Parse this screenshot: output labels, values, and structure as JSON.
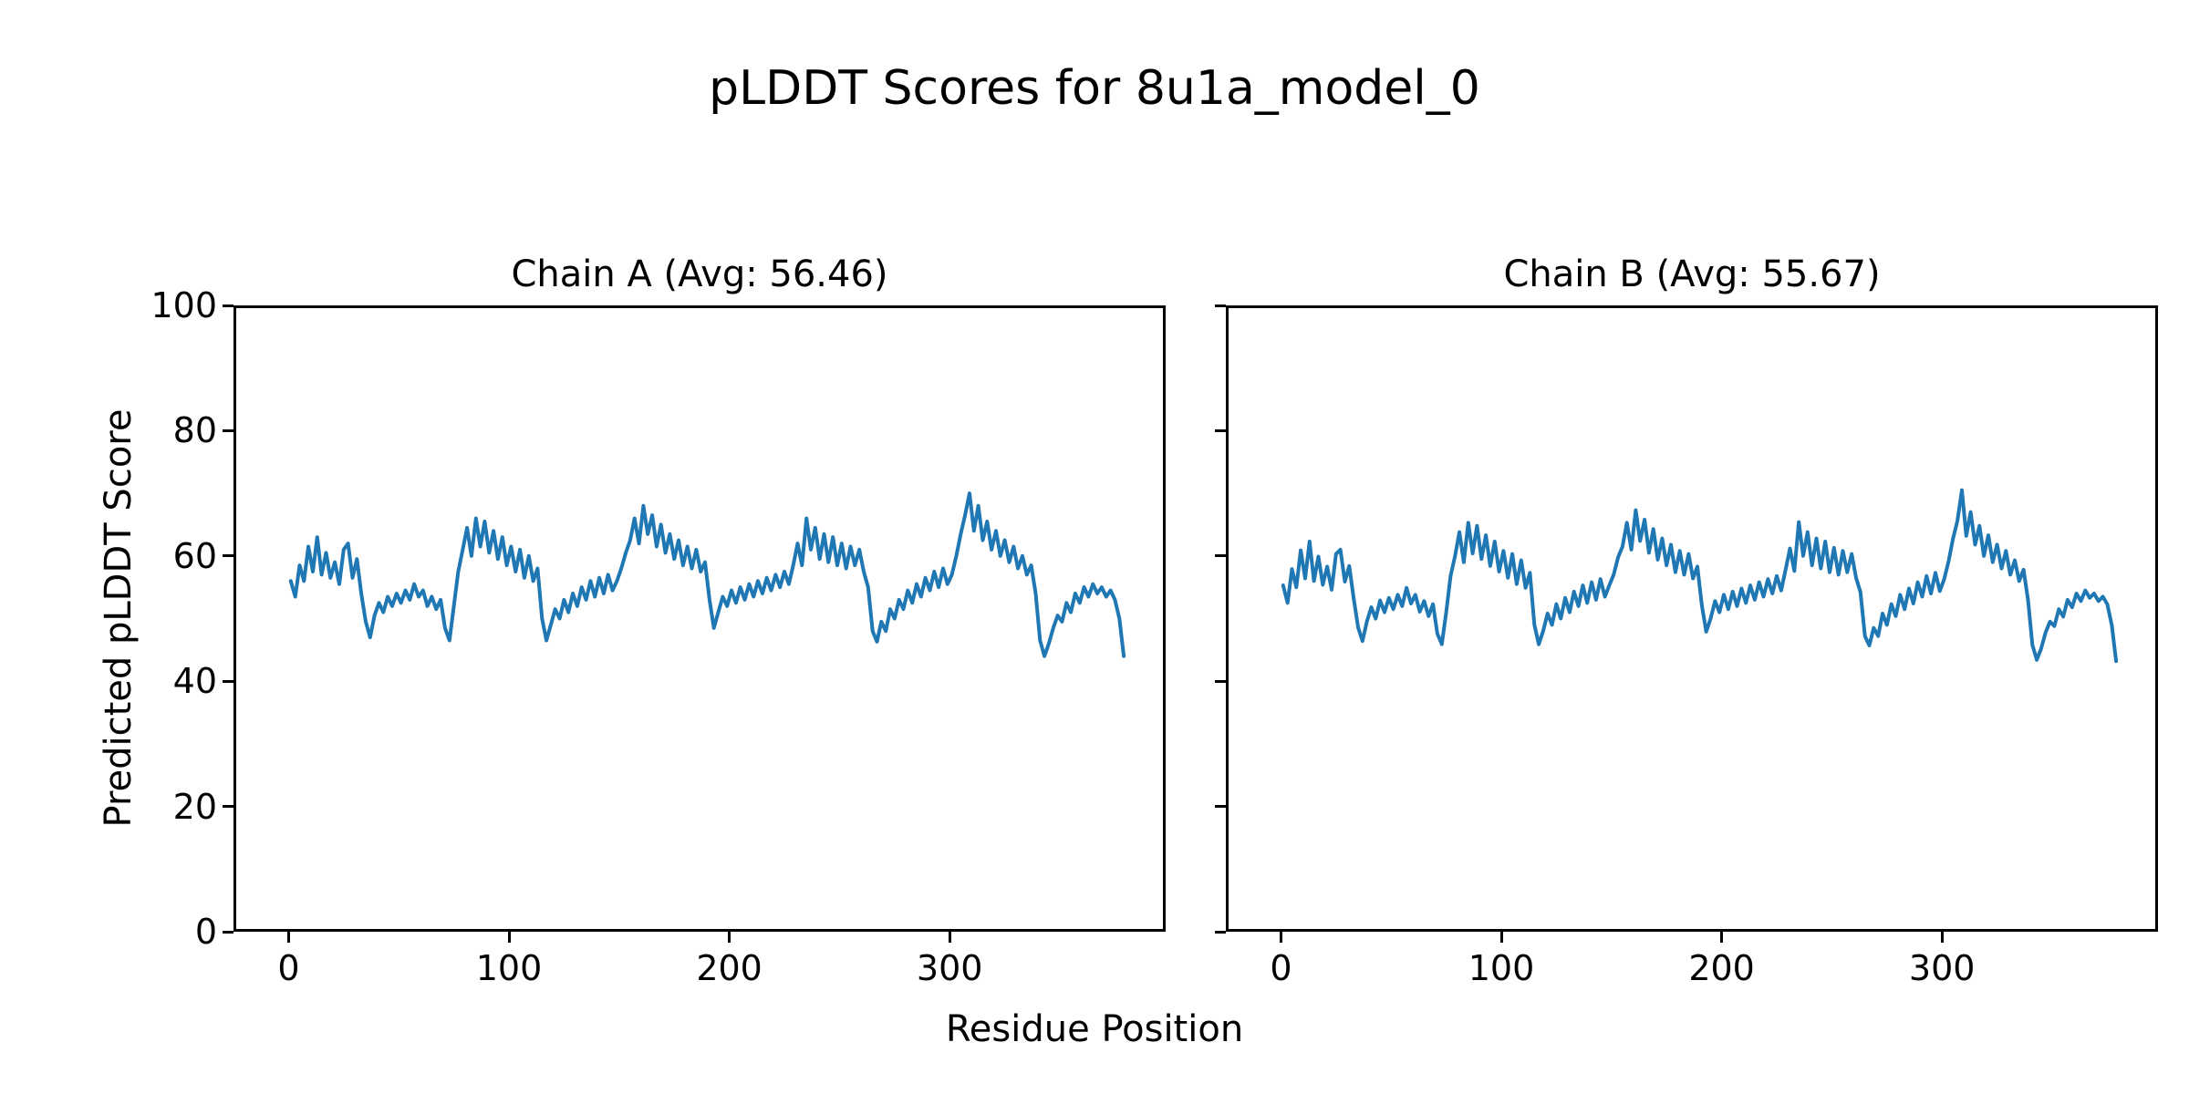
{
  "figure": {
    "title": "pLDDT Scores for 8u1a_model_0",
    "xlabel": "Residue Position",
    "ylabel": "Predicted pLDDT Score",
    "background_color": "#ffffff",
    "text_color": "#000000"
  },
  "chart_data": {
    "type": "line",
    "line_color": "#1f77b4",
    "axis_color": "#000000",
    "grid": false,
    "legend": "none",
    "xlim": [
      -25,
      398
    ],
    "ylim": [
      0,
      100
    ],
    "x_ticks": [
      0,
      100,
      200,
      300
    ],
    "y_ticks": [
      0,
      20,
      40,
      60,
      80,
      100
    ],
    "x_start": 1,
    "x_step": 2,
    "subplots": [
      {
        "chain": "A",
        "title": "Chain A (Avg: 56.46)",
        "avg": 56.46,
        "values": [
          56.0,
          53.5,
          58.5,
          56.0,
          61.5,
          57.5,
          63.0,
          57.0,
          60.5,
          56.5,
          59.0,
          55.5,
          61.0,
          62.0,
          56.5,
          59.5,
          54.0,
          49.5,
          47.0,
          50.5,
          52.5,
          51.0,
          53.5,
          52.0,
          54.0,
          52.5,
          54.5,
          53.0,
          55.5,
          53.5,
          54.5,
          52.0,
          53.5,
          51.5,
          53.0,
          48.5,
          46.5,
          52.0,
          57.5,
          61.0,
          64.5,
          60.0,
          66.0,
          61.5,
          65.5,
          60.5,
          64.0,
          59.5,
          63.0,
          58.5,
          61.5,
          57.5,
          61.0,
          56.5,
          60.0,
          56.0,
          58.0,
          50.0,
          46.5,
          49.0,
          51.5,
          50.0,
          53.0,
          51.0,
          54.0,
          52.0,
          55.0,
          53.0,
          56.0,
          53.5,
          56.5,
          54.0,
          57.0,
          54.5,
          56.0,
          58.0,
          60.5,
          62.5,
          66.0,
          62.0,
          68.0,
          63.5,
          66.5,
          61.5,
          65.0,
          60.5,
          63.5,
          59.5,
          62.5,
          58.5,
          61.5,
          58.0,
          61.0,
          57.5,
          59.0,
          53.0,
          48.5,
          51.0,
          53.5,
          52.0,
          54.5,
          52.5,
          55.0,
          53.0,
          55.5,
          53.5,
          56.0,
          54.0,
          56.5,
          54.5,
          57.0,
          55.0,
          57.5,
          55.5,
          58.5,
          62.0,
          58.5,
          66.0,
          61.0,
          64.5,
          59.5,
          63.5,
          59.0,
          63.0,
          58.5,
          62.0,
          58.0,
          61.5,
          58.5,
          61.0,
          57.5,
          55.0,
          48.0,
          46.3,
          49.5,
          48.0,
          51.5,
          50.0,
          53.0,
          51.5,
          54.5,
          52.5,
          55.5,
          53.5,
          56.5,
          54.5,
          57.5,
          55.0,
          58.0,
          55.5,
          57.0,
          60.0,
          63.5,
          66.5,
          70.0,
          64.0,
          68.0,
          62.5,
          65.5,
          61.0,
          64.0,
          60.0,
          62.5,
          59.0,
          61.5,
          58.0,
          60.0,
          57.0,
          58.5,
          54.0,
          46.5,
          44.0,
          46.0,
          48.5,
          50.5,
          49.5,
          52.5,
          51.0,
          54.0,
          52.5,
          55.0,
          53.5,
          55.5,
          54.0,
          55.0,
          53.5,
          54.5,
          53.0,
          50.0,
          44.0
        ]
      },
      {
        "chain": "B",
        "title": "Chain B (Avg: 55.67)",
        "avg": 55.67,
        "values": [
          55.3,
          52.5,
          57.9,
          55.0,
          60.9,
          56.4,
          62.3,
          56.0,
          59.9,
          55.4,
          58.3,
          54.6,
          60.3,
          61.0,
          55.9,
          58.4,
          53.3,
          48.6,
          46.4,
          49.5,
          51.8,
          50.0,
          52.9,
          51.0,
          53.3,
          51.5,
          53.8,
          52.0,
          54.9,
          52.4,
          53.8,
          51.1,
          52.8,
          50.4,
          52.3,
          47.6,
          45.9,
          51.0,
          56.8,
          60.0,
          63.8,
          59.0,
          65.3,
          60.4,
          64.8,
          59.5,
          63.3,
          58.4,
          62.3,
          57.5,
          60.8,
          56.5,
          60.3,
          55.5,
          59.3,
          54.9,
          57.3,
          49.0,
          45.9,
          48.0,
          50.8,
          49.0,
          52.3,
          50.0,
          53.3,
          51.0,
          54.3,
          52.0,
          55.3,
          52.5,
          55.8,
          53.0,
          56.3,
          53.5,
          55.3,
          57.0,
          59.8,
          61.5,
          65.3,
          61.0,
          67.3,
          62.4,
          65.8,
          60.5,
          64.3,
          59.4,
          62.8,
          58.5,
          61.8,
          57.4,
          60.8,
          57.0,
          60.3,
          56.4,
          58.3,
          52.1,
          47.9,
          50.0,
          52.8,
          51.0,
          53.8,
          51.5,
          54.3,
          52.0,
          54.8,
          52.5,
          55.3,
          53.0,
          55.8,
          53.5,
          56.3,
          54.0,
          56.8,
          54.5,
          57.8,
          61.2,
          57.6,
          65.4,
          60.0,
          63.8,
          58.5,
          62.8,
          58.0,
          62.3,
          57.4,
          61.3,
          57.0,
          60.8,
          57.4,
          60.3,
          56.5,
          54.2,
          47.2,
          45.7,
          48.5,
          47.2,
          50.8,
          49.0,
          52.3,
          50.4,
          53.8,
          51.5,
          54.8,
          52.4,
          55.8,
          53.5,
          56.8,
          54.0,
          57.3,
          54.4,
          56.3,
          59.2,
          62.8,
          65.6,
          70.5,
          63.2,
          67.0,
          61.8,
          64.8,
          60.0,
          63.3,
          59.0,
          61.8,
          58.0,
          60.8,
          57.0,
          59.3,
          56.0,
          57.8,
          53.0,
          45.8,
          43.4,
          45.2,
          47.8,
          49.5,
          48.8,
          51.5,
          50.3,
          53.0,
          51.8,
          54.0,
          52.8,
          54.5,
          53.3,
          54.0,
          52.8,
          53.5,
          52.3,
          49.0,
          43.2
        ]
      }
    ]
  }
}
